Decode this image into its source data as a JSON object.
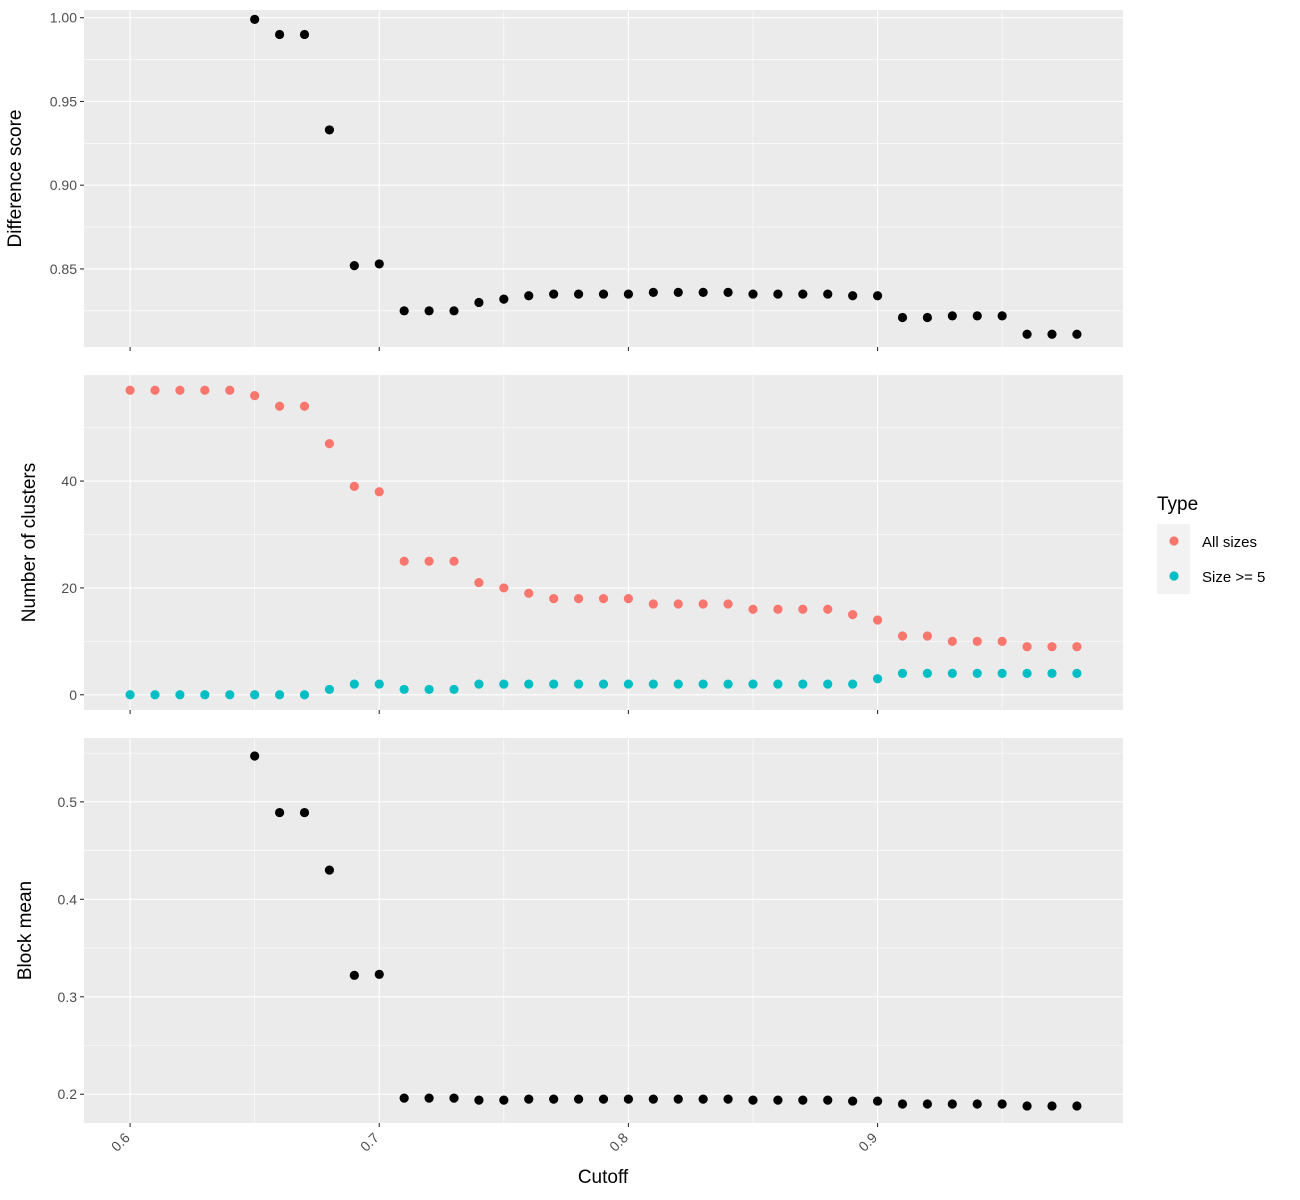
{
  "chart_data": {
    "type": "scatter",
    "xlabel": "Cutoff",
    "x_ticks": [
      "0.6",
      "0.7",
      "0.8",
      "0.9"
    ],
    "x_tick_values": [
      0.6,
      0.7,
      0.8,
      0.9
    ],
    "xlim": [
      0.5815,
      0.9985
    ],
    "grid": true,
    "legend_placement": "right",
    "x": [
      0.6,
      0.61,
      0.62,
      0.63,
      0.64,
      0.65,
      0.66,
      0.67,
      0.68,
      0.69,
      0.7,
      0.71,
      0.72,
      0.73,
      0.74,
      0.75,
      0.76,
      0.77,
      0.78,
      0.79,
      0.8,
      0.81,
      0.82,
      0.83,
      0.84,
      0.85,
      0.86,
      0.87,
      0.88,
      0.89,
      0.9,
      0.91,
      0.92,
      0.93,
      0.94,
      0.95,
      0.96,
      0.97,
      0.98
    ],
    "panels": [
      {
        "ylabel": "Difference score",
        "ylim": [
          0.8034,
          1.0046
        ],
        "y_ticks": [
          "0.85",
          "0.90",
          "0.95",
          "1.00"
        ],
        "y_tick_values": [
          0.85,
          0.9,
          0.95,
          1.0
        ],
        "series": [
          {
            "color": "#000000",
            "values": [
              null,
              null,
              null,
              null,
              null,
              0.999,
              0.99,
              0.99,
              0.933,
              0.852,
              0.853,
              0.825,
              0.825,
              0.825,
              0.83,
              0.832,
              0.834,
              0.835,
              0.835,
              0.835,
              0.835,
              0.836,
              0.836,
              0.836,
              0.836,
              0.835,
              0.835,
              0.835,
              0.835,
              0.834,
              0.834,
              0.821,
              0.821,
              0.822,
              0.822,
              0.822,
              0.811,
              0.811,
              0.811
            ]
          }
        ]
      },
      {
        "ylabel": "Number of clusters",
        "ylim": [
          -2.85,
          59.85
        ],
        "y_ticks": [
          "0",
          "20",
          "40"
        ],
        "y_tick_values": [
          0,
          20,
          40
        ],
        "series": [
          {
            "name": "All sizes",
            "color": "#F8766D",
            "values": [
              57,
              57,
              57,
              57,
              57,
              56,
              54,
              54,
              47,
              39,
              38,
              25,
              25,
              25,
              21,
              20,
              19,
              18,
              18,
              18,
              18,
              17,
              17,
              17,
              17,
              16,
              16,
              16,
              16,
              15,
              14,
              11,
              11,
              10,
              10,
              10,
              9,
              9,
              9
            ]
          },
          {
            "name": "Size >= 5",
            "color": "#00BFC4",
            "values": [
              0,
              0,
              0,
              0,
              0,
              0,
              0,
              0,
              1,
              2,
              2,
              1,
              1,
              1,
              2,
              2,
              2,
              2,
              2,
              2,
              2,
              2,
              2,
              2,
              2,
              2,
              2,
              2,
              2,
              2,
              3,
              4,
              4,
              4,
              4,
              4,
              4,
              4,
              4
            ]
          }
        ]
      },
      {
        "ylabel": "Block mean",
        "ylim": [
          0.1705,
          0.5655
        ],
        "y_ticks": [
          "0.2",
          "0.3",
          "0.4",
          "0.5"
        ],
        "y_tick_values": [
          0.2,
          0.3,
          0.4,
          0.5
        ],
        "series": [
          {
            "color": "#000000",
            "values": [
              null,
              null,
              null,
              null,
              null,
              0.547,
              0.489,
              0.489,
              0.43,
              0.322,
              0.323,
              0.196,
              0.196,
              0.196,
              0.194,
              0.194,
              0.195,
              0.195,
              0.195,
              0.195,
              0.195,
              0.195,
              0.195,
              0.195,
              0.195,
              0.194,
              0.194,
              0.194,
              0.194,
              0.193,
              0.193,
              0.19,
              0.19,
              0.19,
              0.19,
              0.19,
              0.188,
              0.188,
              0.188
            ]
          }
        ]
      }
    ],
    "legend": {
      "title": "Type",
      "entries": [
        {
          "label": "All sizes",
          "color": "#F8766D"
        },
        {
          "label": "Size >= 5",
          "color": "#00BFC4"
        }
      ]
    }
  }
}
